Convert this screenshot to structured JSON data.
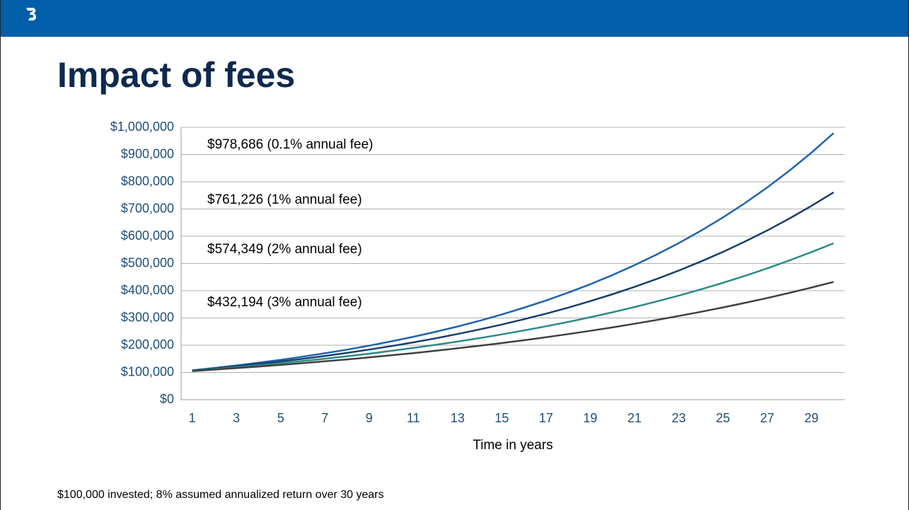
{
  "chart_data": {
    "type": "line",
    "title": "Impact of fees",
    "x_label": "Time in years",
    "note": "$100,000 invested; 8% assumed annualized return over 30 years",
    "categories": [
      1,
      null,
      3,
      null,
      5,
      null,
      7,
      null,
      9,
      null,
      11,
      null,
      13,
      null,
      15,
      null,
      17,
      null,
      19,
      null,
      21,
      null,
      23,
      null,
      25,
      null,
      27,
      null,
      29,
      null
    ],
    "ylim": [
      0,
      1000000
    ],
    "yticks": [
      {
        "value": 0,
        "label": "$0"
      },
      {
        "value": 100000,
        "label": "$100,000"
      },
      {
        "value": 200000,
        "label": "$200,000"
      },
      {
        "value": 300000,
        "label": "$300,000"
      },
      {
        "value": 400000,
        "label": "$400,000"
      },
      {
        "value": 500000,
        "label": "$500,000"
      },
      {
        "value": 600000,
        "label": "$600,000"
      },
      {
        "value": 700000,
        "label": "$700,000"
      },
      {
        "value": 800000,
        "label": "$800,000"
      },
      {
        "value": 900000,
        "label": "$900,000"
      },
      {
        "value": 1000000,
        "label": "$1,000,000"
      }
    ],
    "grid": true,
    "series": [
      {
        "name": "$978,686 (0.1% annual fee)",
        "color": "#1d63ab",
        "values": [
          107900,
          116400,
          125600,
          135500,
          146300,
          157800,
          170300,
          183700,
          198200,
          213900,
          230800,
          249000,
          268700,
          289900,
          312800,
          337600,
          364200,
          393000,
          424000,
          457500,
          493700,
          532700,
          574800,
          620200,
          669200,
          722000,
          779100,
          840600,
          907000,
          978700
        ]
      },
      {
        "name": "$761,226 (1% annual fee)",
        "color": "#163f6e",
        "values": [
          107000,
          114500,
          122500,
          131100,
          140300,
          150100,
          160600,
          171800,
          183800,
          196700,
          210500,
          225200,
          241000,
          257900,
          275900,
          295200,
          315900,
          338000,
          361700,
          387000,
          414100,
          443000,
          474100,
          507200,
          542700,
          580700,
          621400,
          664900,
          711400,
          761200
        ]
      },
      {
        "name": "$574,349 (2% annual fee)",
        "color": "#2a8a86",
        "values": [
          106000,
          112400,
          119100,
          126200,
          133800,
          141900,
          150400,
          159400,
          168900,
          179100,
          189800,
          201200,
          213300,
          226100,
          239700,
          254000,
          269300,
          285400,
          302600,
          320700,
          340000,
          360400,
          382000,
          404900,
          429200,
          454900,
          482200,
          511200,
          541800,
          574300
        ]
      },
      {
        "name": "$432,194 (3% annual fee)",
        "color": "#404040",
        "values": [
          105000,
          110300,
          115800,
          121600,
          127600,
          134000,
          140700,
          147700,
          155100,
          162900,
          171000,
          179600,
          188600,
          198000,
          207900,
          218300,
          229200,
          240700,
          252700,
          265300,
          278600,
          292500,
          307200,
          322500,
          338600,
          355600,
          373300,
          392000,
          411600,
          432200
        ]
      }
    ]
  }
}
